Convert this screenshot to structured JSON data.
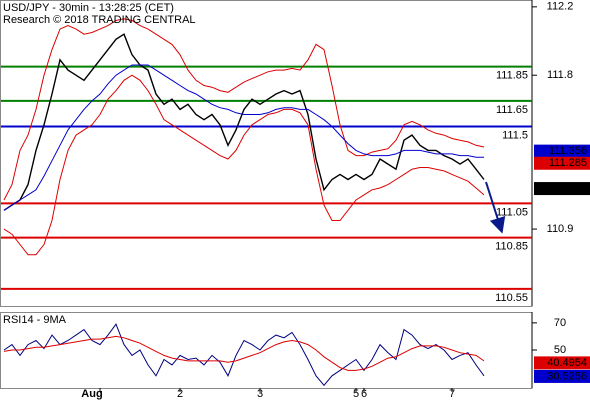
{
  "chart_data": [
    {
      "type": "line",
      "title": "USD/JPY - 30min - 13:28:25 (CET)",
      "subtitle": "Research © 2018 TRADING CENTRAL",
      "categories": [
        null,
        null,
        null,
        null,
        null,
        null,
        null,
        null,
        null,
        null,
        null,
        null,
        "Aug",
        null,
        null,
        null,
        null,
        null,
        null,
        null,
        null,
        null,
        "2",
        null,
        null,
        null,
        null,
        null,
        null,
        null,
        null,
        null,
        "3",
        null,
        null,
        null,
        null,
        null,
        null,
        null,
        null,
        null,
        null,
        null,
        "5",
        "6",
        null,
        null,
        null,
        null,
        null,
        null,
        null,
        null,
        null,
        null,
        "7",
        null,
        null,
        null,
        null
      ],
      "series": [
        {
          "color": "#000000",
          "values": [
            111.01,
            111.04,
            111.07,
            111.16,
            111.36,
            111.51,
            111.69,
            111.89,
            111.83,
            111.8,
            111.77,
            111.83,
            111.89,
            111.95,
            112.01,
            112.04,
            111.92,
            111.86,
            111.83,
            111.69,
            111.63,
            111.66,
            111.6,
            111.63,
            111.57,
            111.54,
            111.57,
            111.51,
            111.39,
            111.48,
            111.6,
            111.66,
            111.63,
            111.66,
            111.69,
            111.71,
            111.69,
            111.71,
            111.57,
            111.31,
            111.13,
            111.19,
            111.22,
            111.19,
            111.22,
            111.19,
            111.22,
            111.31,
            111.28,
            111.25,
            111.42,
            111.45,
            111.39,
            111.36,
            111.36,
            111.33,
            111.31,
            111.28,
            111.31,
            111.25,
            111.19
          ]
        },
        {
          "color": "#dd0000",
          "values": [
            111.07,
            111.16,
            111.36,
            111.45,
            111.6,
            111.8,
            111.95,
            112.07,
            112.09,
            112.07,
            112.04,
            112.05,
            112.07,
            112.09,
            112.12,
            112.13,
            112.12,
            112.09,
            112.07,
            112.04,
            112.01,
            111.98,
            111.92,
            111.83,
            111.77,
            111.74,
            111.73,
            111.71,
            111.7,
            111.73,
            111.76,
            111.78,
            111.8,
            111.82,
            111.83,
            111.83,
            111.84,
            111.83,
            111.89,
            111.98,
            111.95,
            111.74,
            111.51,
            111.36,
            111.33,
            111.33,
            111.35,
            111.36,
            111.37,
            111.42,
            111.51,
            111.53,
            111.51,
            111.48,
            111.46,
            111.45,
            111.43,
            111.42,
            111.41,
            111.39,
            111.38
          ]
        },
        {
          "color": "#dd0000",
          "values": [
            110.9,
            110.87,
            110.81,
            110.75,
            110.75,
            110.81,
            110.95,
            111.19,
            111.36,
            111.45,
            111.48,
            111.51,
            111.57,
            111.66,
            111.71,
            111.77,
            111.8,
            111.77,
            111.71,
            111.63,
            111.54,
            111.51,
            111.48,
            111.45,
            111.42,
            111.39,
            111.36,
            111.33,
            111.31,
            111.36,
            111.45,
            111.51,
            111.54,
            111.57,
            111.58,
            111.6,
            111.6,
            111.58,
            111.51,
            111.25,
            111.04,
            110.95,
            110.95,
            111.01,
            111.07,
            111.1,
            111.13,
            111.14,
            111.16,
            111.19,
            111.22,
            111.25,
            111.26,
            111.26,
            111.25,
            111.24,
            111.22,
            111.2,
            111.18,
            111.14,
            111.1
          ]
        },
        {
          "color": "#0000cc",
          "values": [
            111.01,
            111.04,
            111.07,
            111.1,
            111.13,
            111.21,
            111.3,
            111.39,
            111.48,
            111.54,
            111.6,
            111.65,
            111.69,
            111.75,
            111.8,
            111.83,
            111.86,
            111.86,
            111.86,
            111.83,
            111.8,
            111.77,
            111.74,
            111.71,
            111.69,
            111.66,
            111.63,
            111.61,
            111.6,
            111.58,
            111.57,
            111.57,
            111.57,
            111.58,
            111.6,
            111.61,
            111.61,
            111.6,
            111.6,
            111.57,
            111.54,
            111.5,
            111.45,
            111.4,
            111.36,
            111.34,
            111.33,
            111.33,
            111.33,
            111.34,
            111.36,
            111.36,
            111.36,
            111.35,
            111.34,
            111.34,
            111.34,
            111.33,
            111.33,
            111.32,
            111.32
          ]
        }
      ],
      "ylim": [
        110.45,
        112.24
      ],
      "yticks": [
        112.2,
        111.8,
        110.9
      ],
      "levels": [
        {
          "value": 111.85,
          "color": "#008000"
        },
        {
          "value": 111.65,
          "color": "#008000"
        },
        {
          "value": 111.5,
          "color": "#0000cc"
        },
        {
          "value": 111.05,
          "color": "#dd0000"
        },
        {
          "value": 110.85,
          "color": "#dd0000"
        },
        {
          "value": 110.55,
          "color": "#dd0000"
        }
      ],
      "price_labels": [
        {
          "value": 111.356,
          "color": "#0000cc"
        },
        {
          "value": 111.285,
          "color": "#dd0000"
        },
        {
          "value": 111.137,
          "color": "#000000"
        }
      ]
    },
    {
      "type": "line",
      "title": "RSI14 - 9MA",
      "series": [
        {
          "color": "#000080",
          "values": [
            50,
            54,
            46,
            54,
            57,
            51,
            61,
            54,
            57,
            61,
            65,
            57,
            54,
            61,
            69,
            54,
            46,
            50,
            39,
            31,
            43,
            39,
            46,
            43,
            44,
            39,
            46,
            41,
            31,
            46,
            57,
            54,
            50,
            57,
            61,
            59,
            63,
            54,
            43,
            31,
            24,
            31,
            35,
            39,
            43,
            35,
            43,
            54,
            48,
            43,
            65,
            61,
            54,
            51,
            54,
            50,
            43,
            46,
            48,
            39,
            31
          ]
        },
        {
          "color": "#dd0000",
          "values": [
            49,
            50,
            50,
            51,
            52,
            52,
            53,
            54,
            55,
            56,
            57,
            58,
            58,
            59,
            60,
            59,
            57,
            55,
            52,
            49,
            46,
            44,
            43,
            42,
            42,
            42,
            42,
            42,
            41,
            42,
            44,
            46,
            48,
            51,
            54,
            56,
            57,
            56,
            54,
            50,
            45,
            41,
            37,
            35,
            35,
            36,
            38,
            41,
            44,
            45,
            48,
            51,
            53,
            53,
            53,
            52,
            50,
            48,
            47,
            46,
            42
          ]
        }
      ],
      "ylim": [
        22,
        78
      ],
      "yticks": [
        70,
        50
      ],
      "price_labels": [
        {
          "value": 40.4954,
          "color": "#dd0000"
        },
        {
          "value": 30.5256,
          "color": "#0000cc"
        }
      ]
    }
  ]
}
